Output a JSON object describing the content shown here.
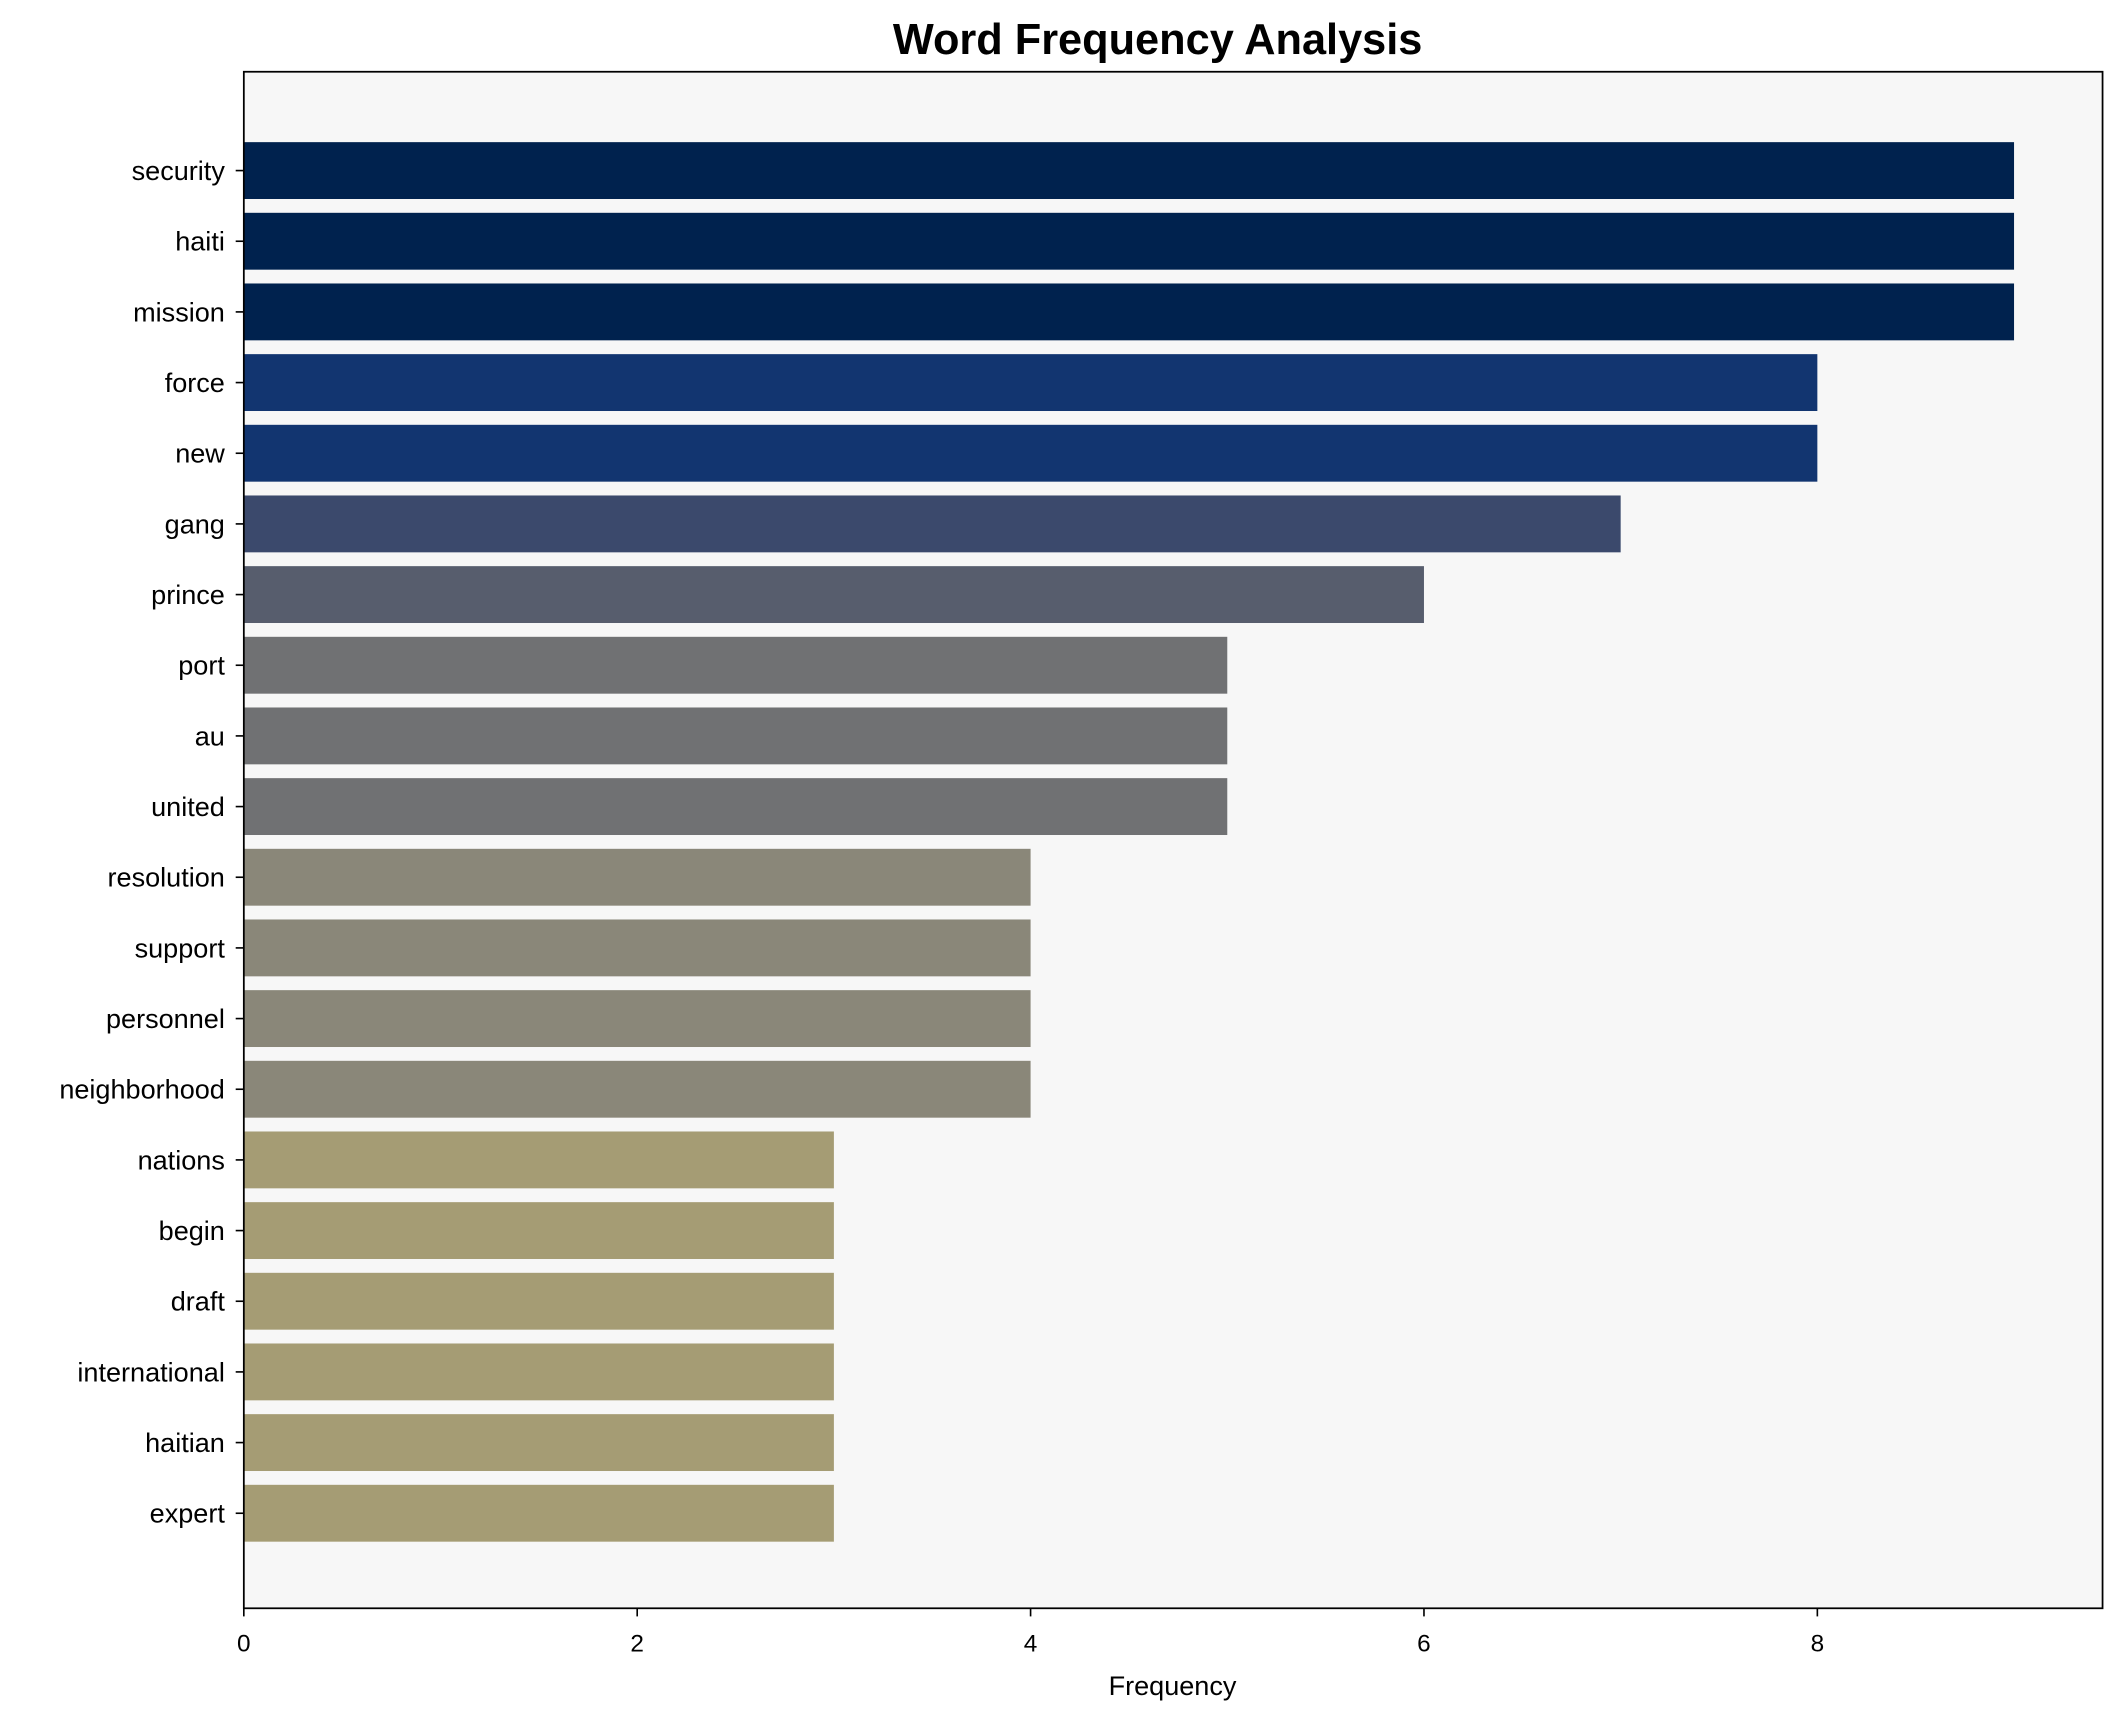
{
  "chart_data": {
    "type": "bar",
    "orientation": "horizontal",
    "title": "Word Frequency Analysis",
    "xlabel": "Frequency",
    "ylabel": "",
    "xlim": [
      0,
      9.45
    ],
    "xticks": [
      0,
      2,
      4,
      6,
      8
    ],
    "categories": [
      "security",
      "haiti",
      "mission",
      "force",
      "new",
      "gang",
      "prince",
      "port",
      "au",
      "united",
      "resolution",
      "support",
      "personnel",
      "neighborhood",
      "nations",
      "begin",
      "draft",
      "international",
      "haitian",
      "expert"
    ],
    "values": [
      9,
      9,
      9,
      8,
      8,
      7,
      6,
      5,
      5,
      5,
      4,
      4,
      4,
      4,
      3,
      3,
      3,
      3,
      3,
      3
    ],
    "colors": {
      "9": "#00224e",
      "8": "#123570",
      "7": "#3b496c",
      "6": "#575d6d",
      "5": "#707173",
      "4": "#8a8779",
      "3": "#a59c74"
    },
    "background": "#f7f7f7",
    "grid": false
  }
}
